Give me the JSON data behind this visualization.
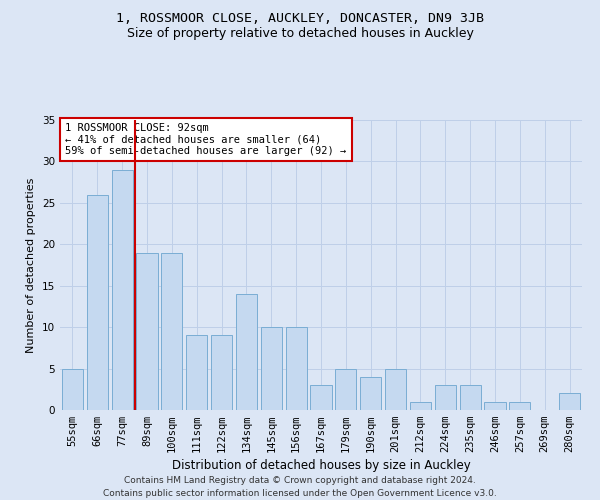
{
  "title1": "1, ROSSMOOR CLOSE, AUCKLEY, DONCASTER, DN9 3JB",
  "title2": "Size of property relative to detached houses in Auckley",
  "xlabel": "Distribution of detached houses by size in Auckley",
  "ylabel": "Number of detached properties",
  "categories": [
    "55sqm",
    "66sqm",
    "77sqm",
    "89sqm",
    "100sqm",
    "111sqm",
    "122sqm",
    "134sqm",
    "145sqm",
    "156sqm",
    "167sqm",
    "179sqm",
    "190sqm",
    "201sqm",
    "212sqm",
    "224sqm",
    "235sqm",
    "246sqm",
    "257sqm",
    "269sqm",
    "280sqm"
  ],
  "values": [
    5,
    26,
    29,
    19,
    19,
    9,
    9,
    14,
    10,
    10,
    3,
    5,
    4,
    5,
    1,
    3,
    3,
    1,
    1,
    0,
    2
  ],
  "bar_color": "#c5d9f0",
  "bar_edge_color": "#7aadd4",
  "annotation_text": "1 ROSSMOOR CLOSE: 92sqm\n← 41% of detached houses are smaller (64)\n59% of semi-detached houses are larger (92) →",
  "annotation_box_color": "#ffffff",
  "annotation_box_edge": "#cc0000",
  "vline_color": "#cc0000",
  "grid_color": "#bfcfe8",
  "background_color": "#dce6f5",
  "ylim": [
    0,
    35
  ],
  "yticks": [
    0,
    5,
    10,
    15,
    20,
    25,
    30,
    35
  ],
  "footer1": "Contains HM Land Registry data © Crown copyright and database right 2024.",
  "footer2": "Contains public sector information licensed under the Open Government Licence v3.0.",
  "title1_fontsize": 9.5,
  "title2_fontsize": 9,
  "xlabel_fontsize": 8.5,
  "ylabel_fontsize": 8,
  "tick_fontsize": 7.5,
  "annotation_fontsize": 7.5,
  "footer_fontsize": 6.5,
  "vline_x": 2.5
}
